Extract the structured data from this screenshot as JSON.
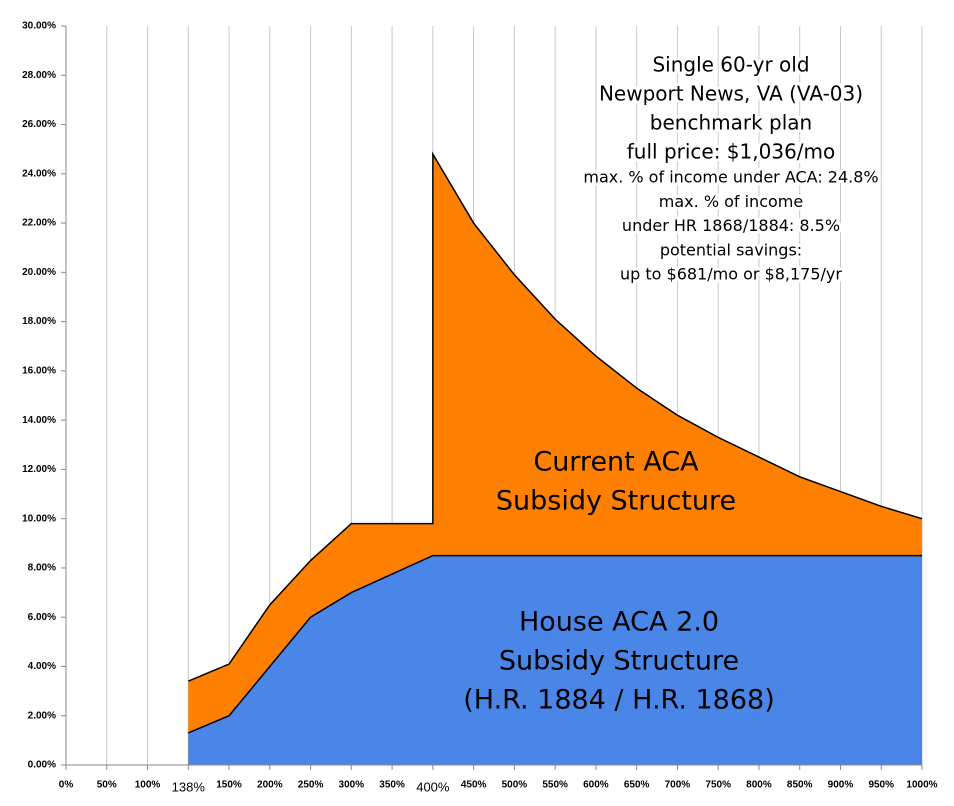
{
  "chart_data": {
    "type": "area",
    "xticks": [
      {
        "value": 0,
        "label": "0%"
      },
      {
        "value": 50,
        "label": "50%"
      },
      {
        "value": 100,
        "label": "100%"
      },
      {
        "value": 138,
        "label": "138%",
        "emphasis": true
      },
      {
        "value": 150,
        "label": "150%"
      },
      {
        "value": 200,
        "label": "200%"
      },
      {
        "value": 250,
        "label": "250%"
      },
      {
        "value": 300,
        "label": "300%"
      },
      {
        "value": 350,
        "label": "350%"
      },
      {
        "value": 400,
        "label": "400%",
        "emphasis": true
      },
      {
        "value": 450,
        "label": "450%"
      },
      {
        "value": 500,
        "label": "500%"
      },
      {
        "value": 550,
        "label": "550%"
      },
      {
        "value": 600,
        "label": "600%"
      },
      {
        "value": 650,
        "label": "650%"
      },
      {
        "value": 700,
        "label": "700%"
      },
      {
        "value": 750,
        "label": "750%"
      },
      {
        "value": 800,
        "label": "800%"
      },
      {
        "value": 850,
        "label": "850%"
      },
      {
        "value": 900,
        "label": "900%"
      },
      {
        "value": 950,
        "label": "950%"
      },
      {
        "value": 1000,
        "label": "1000%"
      }
    ],
    "xlim": [
      0,
      1000
    ],
    "ylim": [
      0,
      30
    ],
    "yticks": [
      {
        "value": 0,
        "label": "0.00%"
      },
      {
        "value": 2,
        "label": "2.00%"
      },
      {
        "value": 4,
        "label": "4.00%"
      },
      {
        "value": 6,
        "label": "6.00%"
      },
      {
        "value": 8,
        "label": "8.00%"
      },
      {
        "value": 10,
        "label": "10.00%"
      },
      {
        "value": 12,
        "label": "12.00%"
      },
      {
        "value": 14,
        "label": "14.00%"
      },
      {
        "value": 16,
        "label": "16.00%"
      },
      {
        "value": 18,
        "label": "18.00%"
      },
      {
        "value": 20,
        "label": "20.00%"
      },
      {
        "value": 22,
        "label": "22.00%"
      },
      {
        "value": 24,
        "label": "24.00%"
      },
      {
        "value": 26,
        "label": "26.00%"
      },
      {
        "value": 28,
        "label": "28.00%"
      },
      {
        "value": 30,
        "label": "30.00%"
      }
    ],
    "grid": "x",
    "series": [
      {
        "label": [
          "Current ACA",
          "Subsidy Structure"
        ],
        "color": "#ff7f00",
        "x": [
          138,
          150,
          200,
          250,
          300,
          350,
          400,
          400,
          450,
          500,
          550,
          600,
          650,
          700,
          750,
          800,
          850,
          900,
          950,
          1000
        ],
        "values": [
          3.4,
          4.1,
          6.5,
          8.3,
          9.8,
          9.8,
          9.8,
          24.8,
          22.0,
          19.9,
          18.1,
          16.6,
          15.3,
          14.2,
          13.3,
          12.5,
          11.7,
          11.1,
          10.5,
          10.0
        ]
      },
      {
        "label": [
          "House ACA 2.0",
          "Subsidy Structure",
          "(H.R. 1884 / H.R. 1868)"
        ],
        "color": "#4a86e8",
        "x": [
          138,
          150,
          200,
          250,
          300,
          350,
          400,
          450,
          500,
          550,
          600,
          650,
          700,
          750,
          800,
          850,
          900,
          950,
          1000
        ],
        "values": [
          1.3,
          2.0,
          4.0,
          6.0,
          7.0,
          7.75,
          8.5,
          8.5,
          8.5,
          8.5,
          8.5,
          8.5,
          8.5,
          8.5,
          8.5,
          8.5,
          8.5,
          8.5,
          8.5
        ]
      }
    ],
    "annotation": {
      "heading": [
        "Single 60-yr old",
        "Newport News, VA (VA-03)",
        "benchmark plan",
        "full price: $1,036/mo"
      ],
      "details": [
        "max. % of income under ACA: 24.8%",
        "max. % of income",
        "under HR 1868/1884: 8.5%",
        "potential savings:",
        "up to $681/mo or $8,175/yr"
      ]
    }
  }
}
